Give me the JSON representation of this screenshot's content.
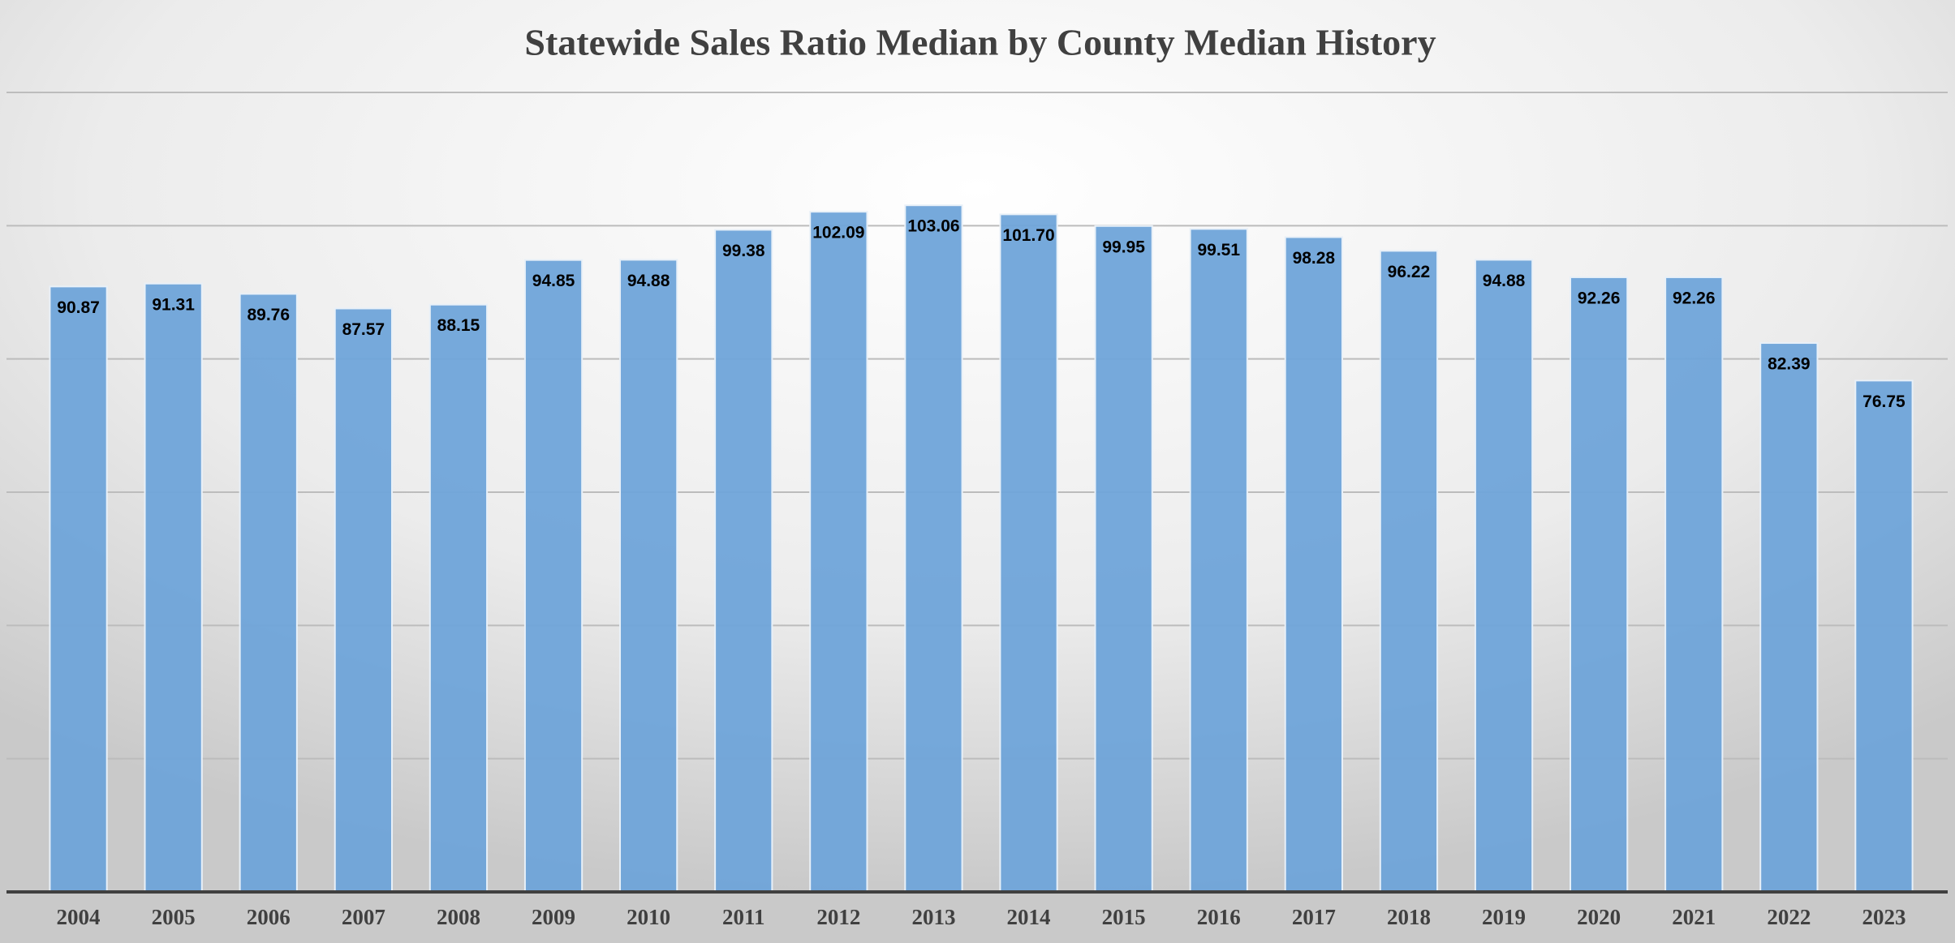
{
  "chart_data": {
    "type": "bar",
    "title": "Statewide Sales Ratio Median by County Median History",
    "categories": [
      "2004",
      "2005",
      "2006",
      "2007",
      "2008",
      "2009",
      "2010",
      "2011",
      "2012",
      "2013",
      "2014",
      "2015",
      "2016",
      "2017",
      "2018",
      "2019",
      "2020",
      "2021",
      "2022",
      "2023"
    ],
    "values": [
      90.87,
      91.31,
      89.76,
      87.57,
      88.15,
      94.85,
      94.88,
      99.38,
      102.09,
      103.06,
      101.7,
      99.95,
      99.51,
      98.28,
      96.22,
      94.88,
      92.26,
      92.26,
      82.39,
      76.75
    ],
    "value_labels": [
      "90.87",
      "91.31",
      "89.76",
      "87.57",
      "88.15",
      "94.85",
      "94.88",
      "99.38",
      "102.09",
      "103.06",
      "101.70",
      "99.95",
      "99.51",
      "98.28",
      "96.22",
      "94.88",
      "92.26",
      "92.26",
      "82.39",
      "76.75"
    ],
    "color": "#6fa4d9",
    "ylim": [
      0,
      120
    ],
    "yticks": [
      0,
      20,
      40,
      60,
      80,
      100,
      120
    ],
    "grid": true
  }
}
